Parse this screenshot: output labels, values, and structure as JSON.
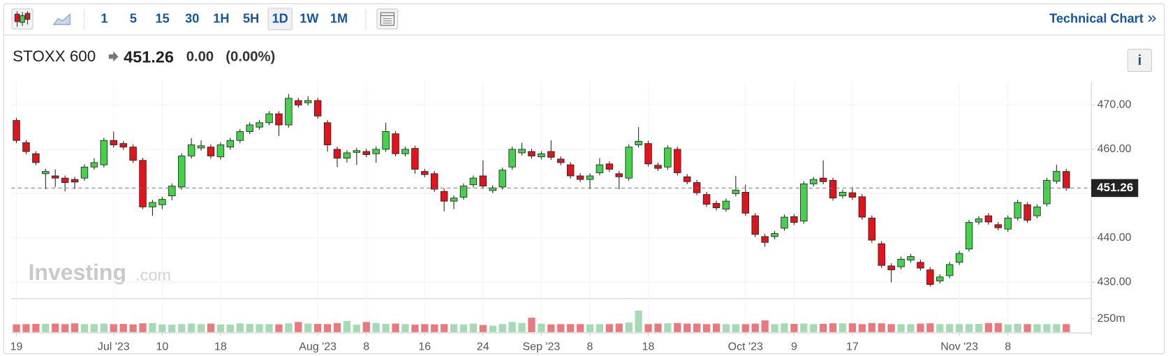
{
  "toolbar": {
    "intervals": [
      "1",
      "5",
      "15",
      "30",
      "1H",
      "5H",
      "1D",
      "1W",
      "1M"
    ],
    "active_index": 6,
    "link": "Technical Chart"
  },
  "header": {
    "symbol": "STOXX 600",
    "change": "0.00",
    "change_pct": "(0.00%)",
    "info": "i"
  },
  "watermark": {
    "brand": "Investing",
    "suffix": ".com"
  },
  "chart_data": {
    "type": "candlestick",
    "last_price": 451.26,
    "categories": [
      "19",
      null,
      null,
      null,
      null,
      null,
      null,
      null,
      null,
      null,
      "Jul '23",
      null,
      null,
      null,
      null,
      "10",
      null,
      null,
      null,
      null,
      null,
      "18",
      null,
      null,
      null,
      null,
      null,
      null,
      null,
      null,
      null,
      "Aug '23",
      null,
      null,
      null,
      null,
      "8",
      null,
      null,
      null,
      null,
      null,
      "16",
      null,
      null,
      null,
      null,
      null,
      "24",
      null,
      null,
      null,
      null,
      null,
      "Sep '23",
      null,
      null,
      null,
      null,
      "8",
      null,
      null,
      null,
      null,
      null,
      "18",
      null,
      null,
      null,
      null,
      null,
      null,
      null,
      null,
      null,
      "Oct '23",
      null,
      null,
      null,
      null,
      "9",
      null,
      null,
      null,
      null,
      null,
      "17",
      null,
      null,
      null,
      null,
      null,
      null,
      null,
      null,
      null,
      null,
      "Nov '23",
      null,
      null,
      null,
      null,
      "8",
      null,
      null,
      null,
      null,
      null,
      null
    ],
    "open": [
      466.5,
      461.5,
      459,
      454.5,
      454,
      453.5,
      453.2,
      453.5,
      456,
      456.5,
      462,
      461.3,
      460.5,
      457.5,
      447,
      447.5,
      449.5,
      451.5,
      458.5,
      460.3,
      460.5,
      458.3,
      460.5,
      462,
      464,
      465,
      466,
      468,
      465.5,
      471,
      470.5,
      471,
      466,
      460,
      458,
      459.3,
      459.5,
      459,
      460,
      463.5,
      459,
      460.2,
      455,
      454.5,
      450.5,
      448.3,
      449.2,
      452,
      454,
      450.7,
      451.5,
      456,
      459.2,
      459.5,
      458.3,
      459.5,
      457.8,
      456.5,
      454,
      453.2,
      454.7,
      456.7,
      454.5,
      453.5,
      461,
      461.3,
      456.4,
      456,
      460,
      453.8,
      452.5,
      449.8,
      447.8,
      446.5,
      450,
      450.3,
      445,
      440.3,
      440.3,
      442.2,
      444.8,
      443.8,
      452.2,
      453.5,
      453,
      449.5,
      450.2,
      449.3,
      444.5,
      438.7,
      433.7,
      433.5,
      435,
      434.5,
      432.8,
      430.3,
      431.5,
      434.5,
      437.5,
      443.6,
      445,
      443,
      442,
      444.5,
      447.5,
      445,
      447.7,
      452.8,
      455
    ],
    "high": [
      467.1,
      462.1,
      459.6,
      455.6,
      455.5,
      454.1,
      453.8,
      456.6,
      458,
      462.6,
      464,
      461.9,
      461.1,
      458.1,
      448.6,
      449.3,
      452.3,
      459.1,
      462.5,
      462,
      461.1,
      461.6,
      462.6,
      464.6,
      466.1,
      466.6,
      468.6,
      468.6,
      472.5,
      471.6,
      472,
      471.6,
      466.6,
      460.6,
      459.8,
      460.3,
      460.1,
      460.6,
      466,
      464.1,
      460.6,
      460.8,
      455.6,
      455.1,
      451.1,
      449.6,
      452.3,
      454.1,
      457.5,
      451.9,
      455.9,
      460.6,
      461.5,
      460.1,
      459.6,
      462,
      458.4,
      457.1,
      454.6,
      454.6,
      458,
      457.3,
      455.1,
      461.1,
      465,
      461.9,
      457,
      460.9,
      460.6,
      454.4,
      453.1,
      450.4,
      448.4,
      448.9,
      454,
      452,
      445.6,
      440.9,
      441.6,
      445.3,
      445.4,
      452.8,
      453.8,
      457.5,
      453.6,
      450.9,
      451.5,
      449.9,
      445.1,
      439.3,
      434.3,
      435.8,
      436.4,
      435.1,
      433.4,
      431.8,
      434.6,
      437.1,
      444.1,
      444.9,
      445.6,
      443.6,
      445.1,
      448.6,
      448.1,
      447.6,
      453.6,
      456.5,
      455.6
    ],
    "low": [
      461.4,
      458.9,
      456.4,
      451,
      451.5,
      450.5,
      451,
      452.9,
      455.4,
      455.9,
      460.4,
      459.9,
      456.9,
      446.5,
      445,
      446.5,
      448.5,
      450.9,
      457.9,
      459.7,
      457.9,
      457.7,
      459.9,
      461.4,
      463.4,
      464.4,
      465.4,
      463,
      464.9,
      469.4,
      469.9,
      466.9,
      459.5,
      456,
      457,
      456.5,
      458.2,
      457,
      459.4,
      458.4,
      458.4,
      454.5,
      453.7,
      450.4,
      446,
      446.5,
      448.6,
      451.4,
      451.1,
      450.1,
      450.9,
      455.4,
      458.6,
      457.9,
      457.7,
      457.6,
      456.4,
      453.4,
      452.6,
      451,
      454.1,
      454.9,
      451,
      452.9,
      460.4,
      456.1,
      455.1,
      455.4,
      454.1,
      452.1,
      449.6,
      447,
      446.2,
      445.9,
      449.4,
      445,
      440.2,
      438,
      439.7,
      441.6,
      442.9,
      443.2,
      451.6,
      452.1,
      448.4,
      448.9,
      448.6,
      444.1,
      438.9,
      433.2,
      430,
      432.9,
      434.4,
      432.6,
      429,
      429.7,
      430.9,
      433.9,
      436.9,
      443,
      443,
      441.7,
      441.4,
      443.9,
      443.4,
      444.4,
      447.1,
      452.2,
      450.66
    ],
    "close": [
      462,
      459.5,
      457,
      455,
      453.5,
      452.5,
      452.6,
      456,
      457,
      462,
      461,
      460.5,
      457.5,
      447,
      448,
      448.7,
      451.7,
      458.5,
      461,
      460.8,
      458.5,
      461,
      462,
      464,
      465.5,
      466,
      468,
      465.5,
      471.5,
      470,
      471,
      467.5,
      461,
      458,
      459.2,
      459.7,
      458.8,
      460,
      464,
      459,
      460,
      455.5,
      454.3,
      451,
      448.3,
      449,
      451.7,
      453.5,
      451.7,
      451.3,
      455.3,
      460,
      460,
      458.5,
      459,
      458.2,
      457,
      454,
      453.2,
      454,
      456.5,
      455.5,
      453.8,
      460.5,
      461.8,
      456.7,
      455.7,
      460.3,
      454.7,
      452.7,
      450.2,
      447.6,
      446.8,
      448.3,
      450.8,
      445.6,
      440.8,
      439,
      441,
      444.7,
      443.5,
      452.2,
      453.2,
      452.7,
      449,
      450.3,
      449.2,
      444.7,
      439.5,
      433.8,
      432.8,
      435.2,
      435.8,
      433.2,
      429.5,
      431.2,
      434,
      436.5,
      443.5,
      444.3,
      443.6,
      442.3,
      444.5,
      448,
      444,
      447,
      453,
      455,
      451.26
    ],
    "volume": [
      145,
      150,
      155,
      155,
      160,
      150,
      165,
      150,
      150,
      160,
      150,
      155,
      145,
      165,
      170,
      145,
      140,
      150,
      160,
      150,
      160,
      145,
      140,
      165,
      155,
      150,
      150,
      145,
      165,
      190,
      160,
      155,
      150,
      170,
      210,
      140,
      190,
      170,
      155,
      160,
      150,
      140,
      150,
      145,
      150,
      150,
      145,
      160,
      135,
      120,
      150,
      190,
      170,
      270,
      160,
      145,
      150,
      150,
      150,
      145,
      150,
      150,
      160,
      180,
      400,
      150,
      160,
      165,
      170,
      160,
      160,
      150,
      160,
      150,
      150,
      150,
      160,
      220,
      150,
      165,
      155,
      160,
      150,
      155,
      165,
      165,
      165,
      150,
      170,
      165,
      150,
      150,
      150,
      160,
      165,
      150,
      150,
      150,
      150,
      155,
      170,
      170,
      145,
      155,
      150,
      150,
      150,
      150,
      150
    ],
    "ylim": [
      426.47,
      475.2
    ],
    "yticks": [
      {
        "value": 430,
        "label": "430.00"
      },
      {
        "value": 440,
        "label": "440.00"
      },
      {
        "value": 450,
        "label": "450.00"
      },
      {
        "value": 460,
        "label": "460.00"
      },
      {
        "value": 470,
        "label": "470.00"
      }
    ],
    "volume_ylim": [
      0,
      600
    ],
    "volume_ticks": [
      {
        "value": 250,
        "label": "250m"
      }
    ],
    "up_color": "#46d14b",
    "down_color": "#e0141a",
    "volume_up_color": "#a5dab4",
    "volume_down_color": "#e87a7e",
    "grid": true
  }
}
